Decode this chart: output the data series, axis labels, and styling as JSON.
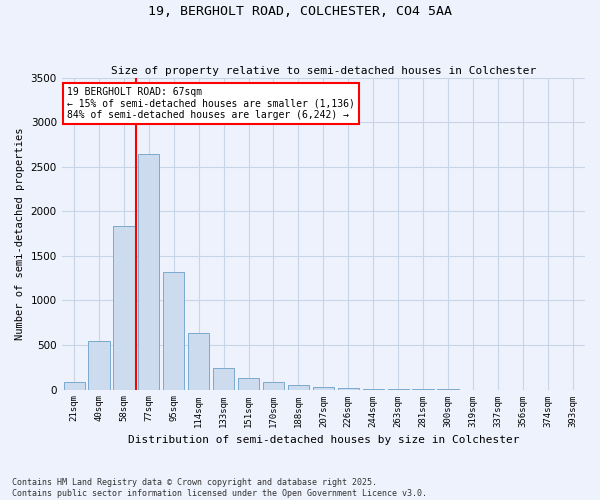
{
  "title1": "19, BERGHOLT ROAD, COLCHESTER, CO4 5AA",
  "title2": "Size of property relative to semi-detached houses in Colchester",
  "xlabel": "Distribution of semi-detached houses by size in Colchester",
  "ylabel": "Number of semi-detached properties",
  "footnote": "Contains HM Land Registry data © Crown copyright and database right 2025.\nContains public sector information licensed under the Open Government Licence v3.0.",
  "bar_color": "#ccdcee",
  "bar_edge_color": "#7aaace",
  "categories": [
    "21sqm",
    "40sqm",
    "58sqm",
    "77sqm",
    "95sqm",
    "114sqm",
    "133sqm",
    "151sqm",
    "170sqm",
    "188sqm",
    "207sqm",
    "226sqm",
    "244sqm",
    "263sqm",
    "281sqm",
    "300sqm",
    "319sqm",
    "337sqm",
    "356sqm",
    "374sqm",
    "393sqm"
  ],
  "values": [
    80,
    540,
    1840,
    2640,
    1320,
    640,
    240,
    130,
    80,
    50,
    30,
    15,
    8,
    4,
    2,
    1,
    0,
    0,
    0,
    0,
    0
  ],
  "red_line_label": "19 BERGHOLT ROAD: 67sqm",
  "annotation_line1": "← 15% of semi-detached houses are smaller (1,136)",
  "annotation_line2": "84% of semi-detached houses are larger (6,242) →",
  "ylim": [
    0,
    3500
  ],
  "yticks": [
    0,
    500,
    1000,
    1500,
    2000,
    2500,
    3000,
    3500
  ],
  "grid_color": "#c8d4e8",
  "background_color": "#eef2fc"
}
